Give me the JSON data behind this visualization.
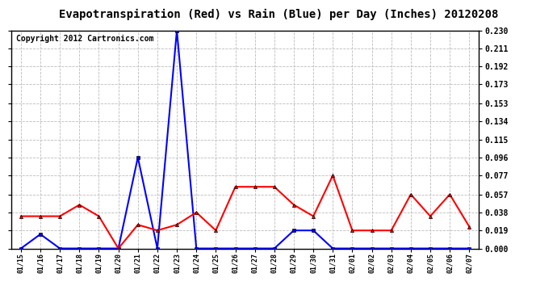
{
  "title": "Evapotranspiration (Red) vs Rain (Blue) per Day (Inches) 20120208",
  "copyright": "Copyright 2012 Cartronics.com",
  "x_labels": [
    "01/15",
    "01/16",
    "01/17",
    "01/18",
    "01/19",
    "01/20",
    "01/21",
    "01/22",
    "01/23",
    "01/24",
    "01/25",
    "01/26",
    "01/27",
    "01/28",
    "01/29",
    "01/30",
    "01/31",
    "02/01",
    "02/02",
    "02/03",
    "02/04",
    "02/05",
    "02/06",
    "02/07"
  ],
  "rain_blue": [
    0.0,
    0.015,
    0.0,
    0.0,
    0.0,
    0.0,
    0.096,
    0.0,
    0.23,
    0.0,
    0.0,
    0.0,
    0.0,
    0.0,
    0.019,
    0.019,
    0.0,
    0.0,
    0.0,
    0.0,
    0.0,
    0.0,
    0.0,
    0.0
  ],
  "et_red": [
    0.034,
    0.034,
    0.034,
    0.046,
    0.034,
    0.0,
    0.025,
    0.019,
    0.025,
    0.038,
    0.019,
    0.065,
    0.065,
    0.065,
    0.046,
    0.034,
    0.077,
    0.019,
    0.019,
    0.019,
    0.057,
    0.034,
    0.057,
    0.023
  ],
  "ylim": [
    0.0,
    0.23
  ],
  "yticks": [
    0.0,
    0.019,
    0.038,
    0.057,
    0.077,
    0.096,
    0.115,
    0.134,
    0.153,
    0.173,
    0.192,
    0.211,
    0.23
  ],
  "blue_color": "#0000ff",
  "red_color": "#ff0000",
  "bg_color": "#ffffff",
  "grid_color": "#bbbbbb",
  "title_fontsize": 10,
  "copyright_fontsize": 7
}
